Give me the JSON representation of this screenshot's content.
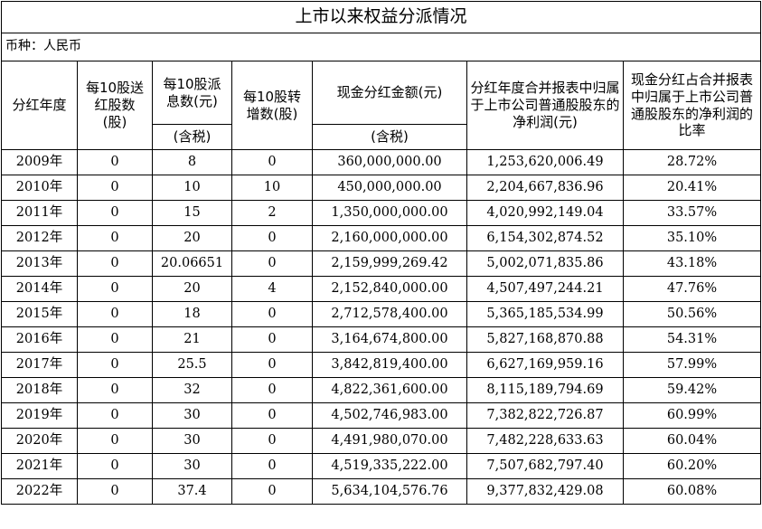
{
  "title": "上市以来权益分派情况",
  "currency": "币种：人民币",
  "headers": {
    "year": "分红年度",
    "bonus_shares": "每10股送红股数(股)",
    "dividend_top": "每10股派息数(元)",
    "dividend_bottom": "(含税)",
    "transfer_shares": "每10股转增数(股)",
    "cash_top": "现金分红金额(元)",
    "cash_bottom": "(含税)",
    "net_profit": "分红年度合并报表中归属于上市公司普通股股东的净利润(元)",
    "ratio": "现金分红占合并报表中归属于上市公司普通股股东的净利润的比率"
  },
  "rows": [
    {
      "year": "2009",
      "year_suffix": "年",
      "bonus": "0",
      "dividend": "8",
      "transfer": "0",
      "cash": "360,000,000.00",
      "profit": "1,253,620,006.49",
      "ratio": "28.72%"
    },
    {
      "year": "2010",
      "year_suffix": "年",
      "bonus": "0",
      "dividend": "10",
      "transfer": "10",
      "cash": "450,000,000.00",
      "profit": "2,204,667,836.96",
      "ratio": "20.41%"
    },
    {
      "year": "2011",
      "year_suffix": "年",
      "bonus": "0",
      "dividend": "15",
      "transfer": "2",
      "cash": "1,350,000,000.00",
      "profit": "4,020,992,149.04",
      "ratio": "33.57%"
    },
    {
      "year": "2012",
      "year_suffix": "年",
      "bonus": "0",
      "dividend": "20",
      "transfer": "0",
      "cash": "2,160,000,000.00",
      "profit": "6,154,302,874.52",
      "ratio": "35.10%"
    },
    {
      "year": "2013",
      "year_suffix": "年",
      "bonus": "0",
      "dividend": "20.06651",
      "transfer": "0",
      "cash": "2,159,999,269.42",
      "profit": "5,002,071,835.86",
      "ratio": "43.18%"
    },
    {
      "year": "2014",
      "year_suffix": "年",
      "bonus": "0",
      "dividend": "20",
      "transfer": "4",
      "cash": "2,152,840,000.00",
      "profit": "4,507,497,244.21",
      "ratio": "47.76%"
    },
    {
      "year": "2015",
      "year_suffix": "年",
      "bonus": "0",
      "dividend": "18",
      "transfer": "0",
      "cash": "2,712,578,400.00",
      "profit": "5,365,185,534.99",
      "ratio": "50.56%"
    },
    {
      "year": "2016",
      "year_suffix": "年",
      "bonus": "0",
      "dividend": "21",
      "transfer": "0",
      "cash": "3,164,674,800.00",
      "profit": "5,827,168,870.88",
      "ratio": "54.31%"
    },
    {
      "year": "2017",
      "year_suffix": "年",
      "bonus": "0",
      "dividend": "25.5",
      "transfer": "0",
      "cash": "3,842,819,400.00",
      "profit": "6,627,169,959.16",
      "ratio": "57.99%"
    },
    {
      "year": "2018",
      "year_suffix": "年",
      "bonus": "0",
      "dividend": "32",
      "transfer": "0",
      "cash": "4,822,361,600.00",
      "profit": "8,115,189,794.69",
      "ratio": "59.42%"
    },
    {
      "year": "2019",
      "year_suffix": "年",
      "bonus": "0",
      "dividend": "30",
      "transfer": "0",
      "cash": "4,502,746,983.00",
      "profit": "7,382,822,726.87",
      "ratio": "60.99%"
    },
    {
      "year": "2020",
      "year_suffix": "年",
      "bonus": "0",
      "dividend": "30",
      "transfer": "0",
      "cash": "4,491,980,070.00",
      "profit": "7,482,228,633.63",
      "ratio": "60.04%"
    },
    {
      "year": "2021",
      "year_suffix": "年",
      "bonus": "0",
      "dividend": "30",
      "transfer": "0",
      "cash": "4,519,335,222.00",
      "profit": "7,507,682,797.40",
      "ratio": "60.20%"
    },
    {
      "year": "2022",
      "year_suffix": "年",
      "bonus": "0",
      "dividend": "37.4",
      "transfer": "0",
      "cash": "5,634,104,576.76",
      "profit": "9,377,832,429.08",
      "ratio": "60.08%"
    }
  ]
}
